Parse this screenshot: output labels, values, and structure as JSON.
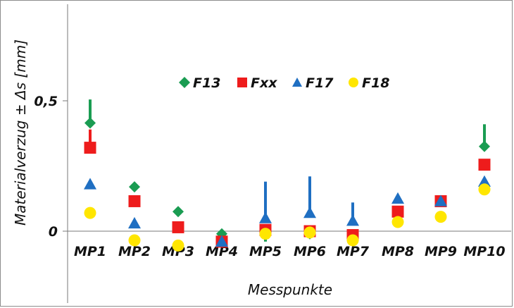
{
  "chart_data": {
    "type": "scatter",
    "categories": [
      "MP1",
      "MP2",
      "MP3",
      "MP4",
      "MP5",
      "MP6",
      "MP7",
      "MP8",
      "MP9",
      "MP10"
    ],
    "xlabel": "Messpunkte",
    "ylabel": "Materialverzug ± Δs [mm]",
    "y_ticks": [
      {
        "value": 0,
        "label": "0"
      },
      {
        "value": 0.5,
        "label": "0,5"
      }
    ],
    "ylim": [
      -0.08,
      0.87
    ],
    "grid": false,
    "legend_position": "top-center",
    "series": [
      {
        "name": "F13",
        "marker": "diamond",
        "color": "#1a9c52",
        "values": [
          0.415,
          0.17,
          0.075,
          -0.01,
          null,
          -0.01,
          null,
          null,
          null,
          0.325
        ],
        "error_plus": [
          0.09,
          0,
          0,
          0,
          0,
          0,
          0,
          0,
          0,
          0.085
        ],
        "error_minus": [
          0,
          0,
          0,
          0,
          0.04,
          0,
          0,
          0,
          0,
          0
        ]
      },
      {
        "name": "Fxx",
        "marker": "square",
        "color": "#ee1c1c",
        "values": [
          0.32,
          0.115,
          0.015,
          -0.04,
          0.005,
          0,
          -0.015,
          0.075,
          0.115,
          0.255
        ],
        "error_plus": [
          0.07,
          0,
          0,
          0,
          0,
          0,
          0,
          0,
          0,
          0
        ],
        "error_minus": [
          0,
          0,
          0,
          0,
          0,
          0,
          0,
          0,
          0,
          0
        ]
      },
      {
        "name": "F17",
        "marker": "triangle",
        "color": "#1f6fc2",
        "values": [
          0.18,
          0.03,
          null,
          -0.04,
          0.05,
          0.07,
          0.04,
          0.125,
          0.115,
          0.19
        ],
        "error_plus": [
          0,
          0,
          0,
          0,
          0.14,
          0.14,
          0.07,
          0,
          0,
          0
        ],
        "error_minus": [
          0,
          0,
          0,
          0,
          0,
          0,
          0,
          0,
          0,
          0
        ]
      },
      {
        "name": "F18",
        "marker": "circle",
        "color": "#ffe600",
        "values": [
          0.07,
          -0.035,
          -0.055,
          null,
          -0.01,
          -0.005,
          -0.035,
          0.035,
          0.055,
          0.16
        ],
        "error_plus": [
          0,
          0,
          0,
          0,
          0,
          0,
          0,
          0,
          0,
          0
        ],
        "error_minus": [
          0,
          0,
          0,
          0,
          0,
          0,
          0,
          0,
          0,
          0
        ]
      }
    ]
  }
}
